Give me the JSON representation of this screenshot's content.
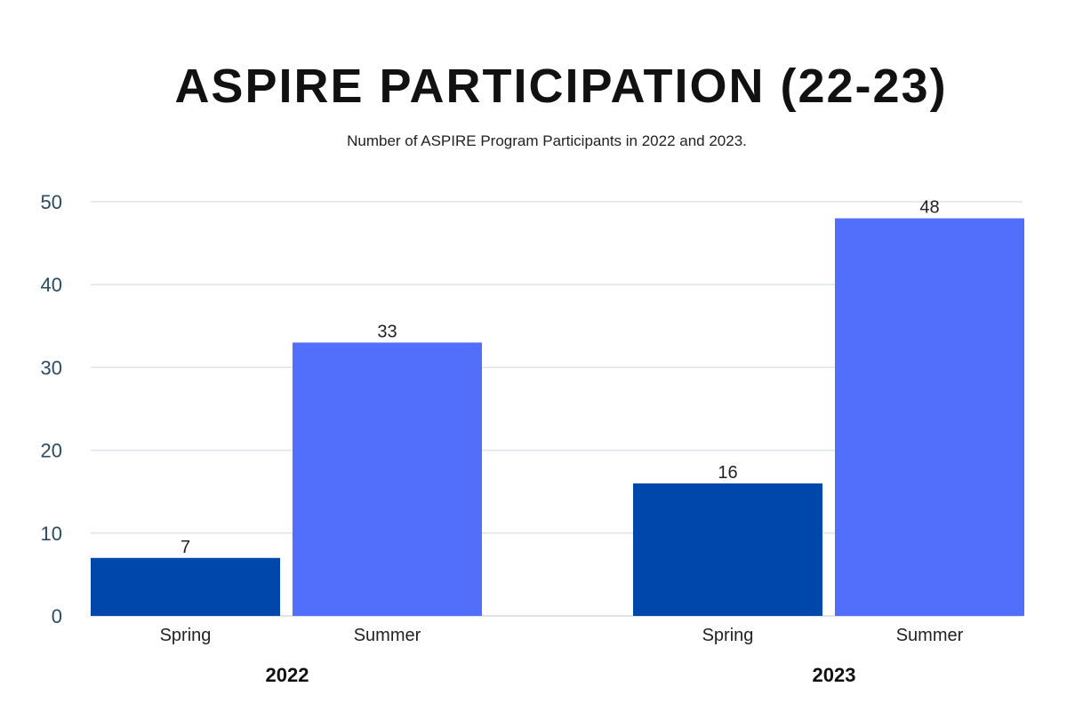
{
  "chart_data": {
    "type": "bar",
    "title": "ASPIRE PARTICIPATION (22-23)",
    "subtitle": "Number of ASPIRE Program Participants in 2022 and 2023.",
    "groups": [
      "2022",
      "2023"
    ],
    "categories": [
      "Spring",
      "Summer"
    ],
    "series": [
      {
        "name": "Spring",
        "color": "#0047ab",
        "values": [
          7,
          16
        ]
      },
      {
        "name": "Summer",
        "color": "#526ffc",
        "values": [
          33,
          48
        ]
      }
    ],
    "data_labels": [
      [
        "7",
        "33"
      ],
      [
        "16",
        "48"
      ]
    ],
    "ylim": [
      0,
      50
    ],
    "yticks": [
      0,
      10,
      20,
      30,
      40,
      50
    ],
    "xlabel": "",
    "ylabel": "",
    "grid": true,
    "legend": "none"
  },
  "colors": {
    "grid": "#dde3ea",
    "axis_text": "#2b4a66",
    "label_text": "#222222"
  }
}
